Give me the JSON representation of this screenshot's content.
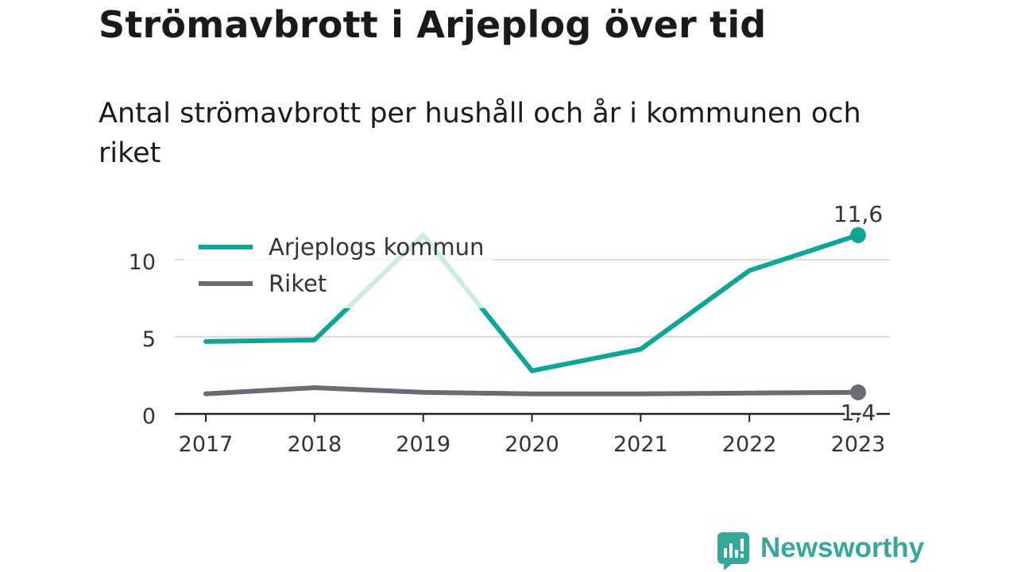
{
  "title": "Strömavbrott i Arjeplog över tid",
  "subtitle": "Antal strömavbrott per hushåll och år i kommunen och riket",
  "brand": {
    "name": "Newsworthy",
    "icon": "newsworthy-logo-icon",
    "color": "#37a79c"
  },
  "chart_data": {
    "type": "line",
    "title": "Strömavbrott i Arjeplog över tid",
    "subtitle": "Antal strömavbrott per hushåll och år i kommunen och riket",
    "xlabel": "",
    "ylabel": "",
    "x": [
      "2017",
      "2018",
      "2019",
      "2020",
      "2021",
      "2022",
      "2023"
    ],
    "yticks": [
      0,
      5,
      10
    ],
    "ytick_labels": [
      "0",
      "5",
      "10"
    ],
    "ylim": [
      0,
      11.6
    ],
    "grid": true,
    "legend": "top-left",
    "series": [
      {
        "name": "Arjeplogs kommun",
        "color": "#0ea597",
        "values": [
          4.7,
          4.8,
          11.6,
          2.8,
          4.2,
          9.3,
          11.6
        ],
        "end_label": "11,6"
      },
      {
        "name": "Riket",
        "color": "#6c6b74",
        "values": [
          1.3,
          1.7,
          1.4,
          1.3,
          1.3,
          1.35,
          1.4
        ],
        "end_label": "1,4"
      }
    ]
  }
}
